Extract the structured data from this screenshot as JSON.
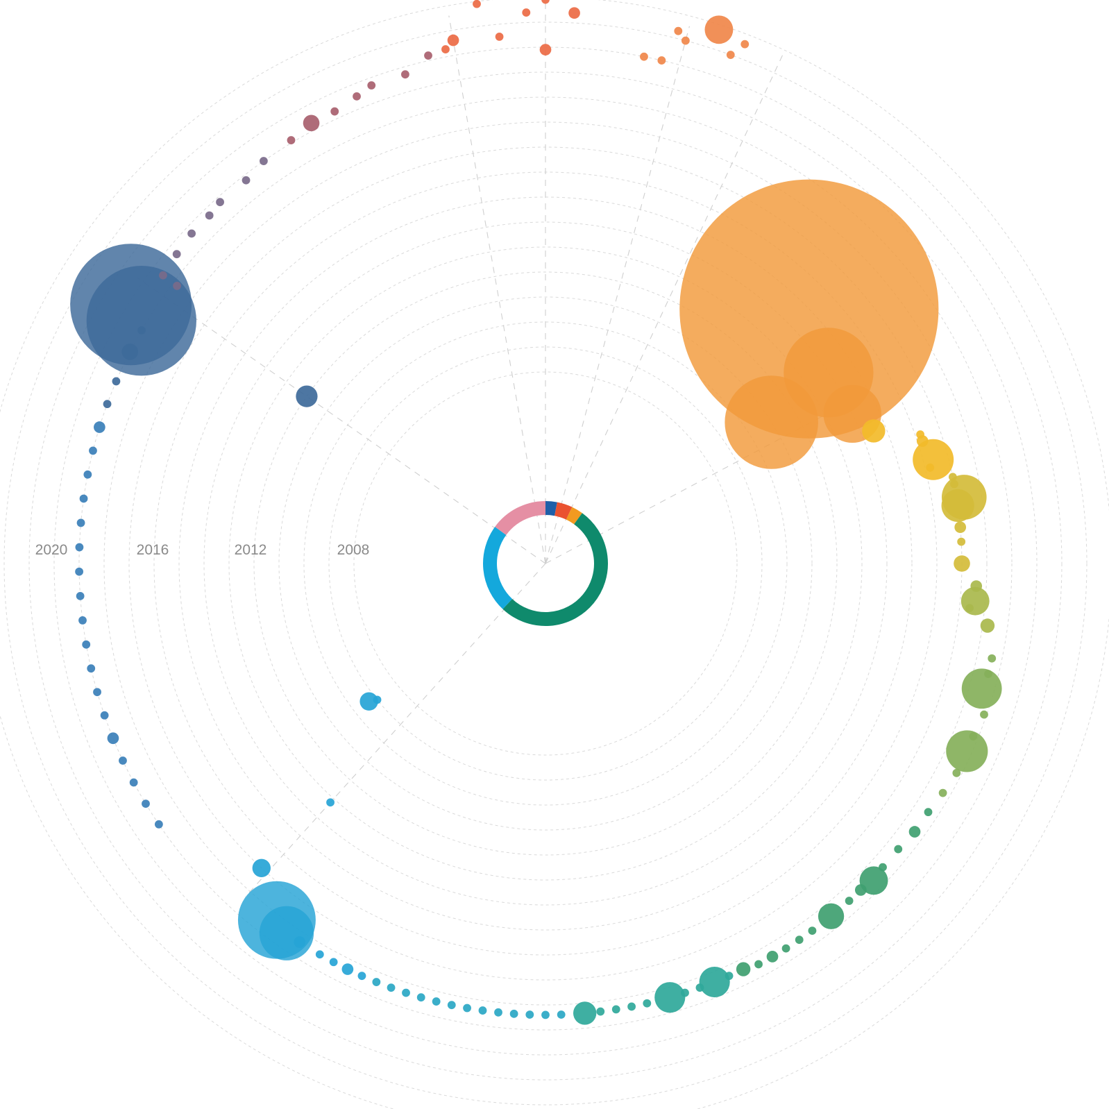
{
  "chart_data": {
    "type": "scatter",
    "subtype": "radial bubble timeline",
    "title": "",
    "year_labels": [
      "2020",
      "2016",
      "2012",
      "2008"
    ],
    "center_donut": {
      "segments": [
        {
          "share": 0.03,
          "color": "#1f5fa8"
        },
        {
          "share": 0.04,
          "color": "#ea5230"
        },
        {
          "share": 0.03,
          "color": "#f29a20"
        },
        {
          "share": 0.52,
          "color": "#0f8a6c"
        },
        {
          "share": 0.23,
          "color": "#14a8dc"
        },
        {
          "share": 0.15,
          "color": "#e58fa4"
        }
      ]
    },
    "groups": [
      {
        "color": "#ec6a44",
        "points": [
          {
            "year": 2020.9,
            "angle": -7,
            "size": 1
          },
          {
            "year": 2020.9,
            "angle": 0,
            "size": 1
          },
          {
            "year": 2020.4,
            "angle": -2,
            "size": 1
          },
          {
            "year": 2020.4,
            "angle": 3,
            "size": 2
          },
          {
            "year": 2019.6,
            "angle": -10,
            "size": 2
          },
          {
            "year": 2019.3,
            "angle": -11,
            "size": 1
          },
          {
            "year": 2019.5,
            "angle": -5,
            "size": 1
          },
          {
            "year": 2018.9,
            "angle": 0,
            "size": 2
          }
        ]
      },
      {
        "color": "#a8606e",
        "points": [
          {
            "year": 2019.2,
            "angle": -13,
            "size": 1
          },
          {
            "year": 2018.7,
            "angle": -16,
            "size": 1
          },
          {
            "year": 2018.7,
            "angle": -20,
            "size": 1
          },
          {
            "year": 2018.5,
            "angle": -22,
            "size": 1
          },
          {
            "year": 2018.3,
            "angle": -25,
            "size": 1
          },
          {
            "year": 2018.3,
            "angle": -28,
            "size": 4
          },
          {
            "year": 2018.1,
            "angle": -31,
            "size": 1
          }
        ]
      },
      {
        "color": "#7a6a8a",
        "points": [
          {
            "year": 2018.0,
            "angle": -35,
            "size": 1
          },
          {
            "year": 2017.8,
            "angle": -38,
            "size": 1
          },
          {
            "year": 2017.8,
            "angle": -42,
            "size": 1
          },
          {
            "year": 2017.7,
            "angle": -44,
            "size": 1
          },
          {
            "year": 2017.7,
            "angle": -47,
            "size": 1
          },
          {
            "year": 2017.6,
            "angle": -50,
            "size": 1
          },
          {
            "year": 2017.5,
            "angle": -53,
            "size": 1
          },
          {
            "year": 2016.8,
            "angle": -53,
            "size": 1
          }
        ]
      },
      {
        "color": "#f0874a",
        "points": [
          {
            "year": 2020.3,
            "angle": 14,
            "size": 1
          },
          {
            "year": 2020.8,
            "angle": 18,
            "size": 12
          },
          {
            "year": 2020.6,
            "angle": 21,
            "size": 1
          },
          {
            "year": 2020.0,
            "angle": 15,
            "size": 1
          },
          {
            "year": 2020.0,
            "angle": 20,
            "size": 1
          },
          {
            "year": 2019.0,
            "angle": 11,
            "size": 1
          },
          {
            "year": 2019.0,
            "angle": 13,
            "size": 1
          }
        ]
      },
      {
        "color": "#f29a3a",
        "points": [
          {
            "year": 2013.0,
            "angle": 46,
            "size": 1000
          },
          {
            "year": 2009.0,
            "angle": 58,
            "size": 130
          },
          {
            "year": 2012.0,
            "angle": 56,
            "size": 120
          },
          {
            "year": 2012.0,
            "angle": 64,
            "size": 50
          }
        ]
      },
      {
        "color": "#f2bb2a",
        "points": [
          {
            "year": 2012.5,
            "angle": 68,
            "size": 8
          },
          {
            "year": 2014.2,
            "angle": 71,
            "size": 1
          },
          {
            "year": 2014.2,
            "angle": 72,
            "size": 2
          },
          {
            "year": 2014.4,
            "angle": 75,
            "size": 25
          },
          {
            "year": 2014.2,
            "angle": 76,
            "size": 1
          }
        ]
      },
      {
        "color": "#d4bc3a",
        "points": [
          {
            "year": 2015.0,
            "angle": 78,
            "size": 1
          },
          {
            "year": 2015.0,
            "angle": 79,
            "size": 1
          },
          {
            "year": 2015.3,
            "angle": 81,
            "size": 30
          },
          {
            "year": 2015.0,
            "angle": 82,
            "size": 16
          },
          {
            "year": 2015.0,
            "angle": 85,
            "size": 2
          },
          {
            "year": 2015.0,
            "angle": 87,
            "size": 1
          },
          {
            "year": 2015.0,
            "angle": 90,
            "size": 4
          }
        ]
      },
      {
        "color": "#a9b84c",
        "points": [
          {
            "year": 2015.6,
            "angle": 93,
            "size": 2
          },
          {
            "year": 2015.6,
            "angle": 95,
            "size": 12
          },
          {
            "year": 2015.4,
            "angle": 96,
            "size": 1
          },
          {
            "year": 2016.2,
            "angle": 98,
            "size": 3
          }
        ]
      },
      {
        "color": "#86b05a",
        "points": [
          {
            "year": 2016.6,
            "angle": 102,
            "size": 1
          },
          {
            "year": 2016.6,
            "angle": 104,
            "size": 1
          },
          {
            "year": 2016.5,
            "angle": 106,
            "size": 24
          },
          {
            "year": 2016.9,
            "angle": 109,
            "size": 1
          },
          {
            "year": 2016.8,
            "angle": 112,
            "size": 1
          },
          {
            "year": 2016.8,
            "angle": 114,
            "size": 26
          },
          {
            "year": 2016.8,
            "angle": 117,
            "size": 1
          },
          {
            "year": 2016.7,
            "angle": 120,
            "size": 1
          }
        ]
      },
      {
        "color": "#3fa070",
        "points": [
          {
            "year": 2016.6,
            "angle": 123,
            "size": 1
          },
          {
            "year": 2016.6,
            "angle": 126,
            "size": 2
          },
          {
            "year": 2016.5,
            "angle": 129,
            "size": 1
          },
          {
            "year": 2016.5,
            "angle": 132,
            "size": 1
          },
          {
            "year": 2016.6,
            "angle": 134,
            "size": 12
          },
          {
            "year": 2016.5,
            "angle": 136,
            "size": 2
          },
          {
            "year": 2016.5,
            "angle": 138,
            "size": 1
          },
          {
            "year": 2016.5,
            "angle": 141,
            "size": 10
          },
          {
            "year": 2016.5,
            "angle": 144,
            "size": 1
          },
          {
            "year": 2016.5,
            "angle": 146,
            "size": 1
          },
          {
            "year": 2016.5,
            "angle": 148,
            "size": 1
          },
          {
            "year": 2016.5,
            "angle": 150,
            "size": 2
          },
          {
            "year": 2016.5,
            "angle": 152,
            "size": 1
          },
          {
            "year": 2016.4,
            "angle": 154,
            "size": 3
          }
        ]
      },
      {
        "color": "#2fa89a",
        "points": [
          {
            "year": 2016.4,
            "angle": 156,
            "size": 1
          },
          {
            "year": 2016.4,
            "angle": 158,
            "size": 14
          },
          {
            "year": 2016.4,
            "angle": 160,
            "size": 1
          },
          {
            "year": 2016.4,
            "angle": 162,
            "size": 1
          },
          {
            "year": 2016.4,
            "angle": 164,
            "size": 14
          },
          {
            "year": 2016.4,
            "angle": 167,
            "size": 1
          },
          {
            "year": 2016.4,
            "angle": 169,
            "size": 1
          },
          {
            "year": 2016.4,
            "angle": 171,
            "size": 1
          },
          {
            "year": 2016.4,
            "angle": 173,
            "size": 1
          },
          {
            "year": 2016.4,
            "angle": 175,
            "size": 8
          }
        ]
      },
      {
        "color": "#2aa7c4",
        "points": [
          {
            "year": 2016.4,
            "angle": 178,
            "size": 1
          },
          {
            "year": 2016.4,
            "angle": 180,
            "size": 1
          },
          {
            "year": 2016.4,
            "angle": 182,
            "size": 1
          },
          {
            "year": 2016.4,
            "angle": 184,
            "size": 1
          },
          {
            "year": 2016.4,
            "angle": 186,
            "size": 1
          },
          {
            "year": 2016.4,
            "angle": 188,
            "size": 1
          },
          {
            "year": 2016.4,
            "angle": 190,
            "size": 1
          },
          {
            "year": 2016.4,
            "angle": 192,
            "size": 1
          },
          {
            "year": 2016.4,
            "angle": 194,
            "size": 1
          },
          {
            "year": 2016.4,
            "angle": 196,
            "size": 1
          },
          {
            "year": 2016.4,
            "angle": 198,
            "size": 1
          },
          {
            "year": 2016.4,
            "angle": 200,
            "size": 1
          },
          {
            "year": 2016.4,
            "angle": 202,
            "size": 1
          }
        ]
      },
      {
        "color": "#26a4d6",
        "points": [
          {
            "year": 2016.4,
            "angle": 204,
            "size": 1
          },
          {
            "year": 2016.4,
            "angle": 206,
            "size": 2
          },
          {
            "year": 2016.4,
            "angle": 208,
            "size": 1
          },
          {
            "year": 2016.4,
            "angle": 210,
            "size": 1
          },
          {
            "year": 2016.4,
            "angle": 213,
            "size": 2
          },
          {
            "year": 2016.4,
            "angle": 215,
            "size": 44
          },
          {
            "year": 2016.2,
            "angle": 217,
            "size": 90
          },
          {
            "year": 2011.2,
            "angle": 222,
            "size": 1
          },
          {
            "year": 2015.0,
            "angle": 223,
            "size": 5
          },
          {
            "year": 2007.3,
            "angle": 232,
            "size": 5
          },
          {
            "year": 2007.0,
            "angle": 231,
            "size": 1
          }
        ]
      },
      {
        "color": "#3a7fb8",
        "points": [
          {
            "year": 2017.0,
            "angle": 236,
            "size": 1
          },
          {
            "year": 2017.0,
            "angle": 239,
            "size": 1
          },
          {
            "year": 2017.0,
            "angle": 242,
            "size": 1
          },
          {
            "year": 2017.0,
            "angle": 245,
            "size": 1
          },
          {
            "year": 2017.0,
            "angle": 248,
            "size": 2
          },
          {
            "year": 2017.0,
            "angle": 251,
            "size": 1
          },
          {
            "year": 2017.0,
            "angle": 254,
            "size": 1
          },
          {
            "year": 2017.0,
            "angle": 257,
            "size": 1
          },
          {
            "year": 2017.0,
            "angle": 260,
            "size": 1
          },
          {
            "year": 2017.0,
            "angle": 263,
            "size": 1
          },
          {
            "year": 2017.0,
            "angle": 266,
            "size": 1
          },
          {
            "year": 2017.0,
            "angle": 269,
            "size": 1
          },
          {
            "year": 2017.0,
            "angle": 272,
            "size": 1
          },
          {
            "year": 2017.0,
            "angle": 275,
            "size": 1
          },
          {
            "year": 2017.0,
            "angle": 278,
            "size": 1
          },
          {
            "year": 2017.0,
            "angle": 281,
            "size": 1
          },
          {
            "year": 2017.0,
            "angle": 284,
            "size": 1
          },
          {
            "year": 2017.0,
            "angle": 287,
            "size": 2
          }
        ]
      },
      {
        "color": "#3e6a9a",
        "points": [
          {
            "year": 2017.0,
            "angle": 290,
            "size": 1
          },
          {
            "year": 2017.0,
            "angle": 293,
            "size": 1
          },
          {
            "year": 2017.0,
            "angle": 297,
            "size": 4
          },
          {
            "year": 2017.0,
            "angle": 300,
            "size": 1
          },
          {
            "year": 2017.2,
            "angle": 301,
            "size": 180
          },
          {
            "year": 2017.9,
            "angle": 302,
            "size": 220
          },
          {
            "year": 2010.0,
            "angle": 305,
            "size": 7
          }
        ]
      }
    ]
  }
}
